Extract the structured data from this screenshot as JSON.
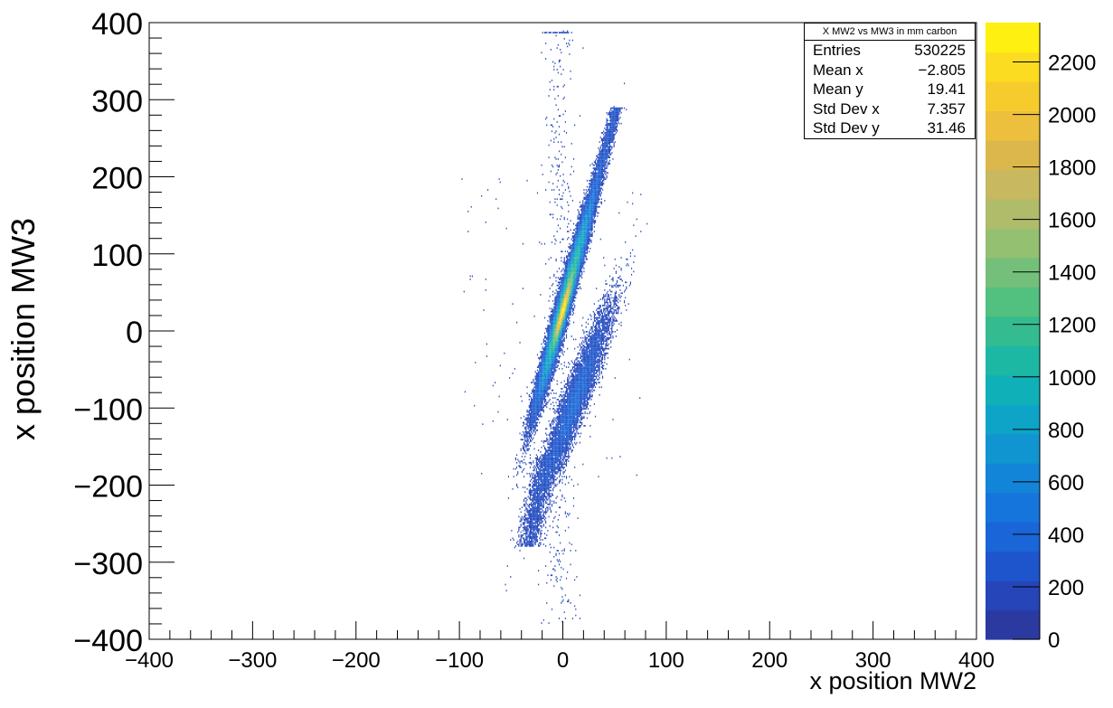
{
  "chart_data": {
    "type": "heatmap",
    "title": "",
    "xlabel": "x position MW2",
    "ylabel": "x position MW3",
    "xlim": [
      -400,
      400
    ],
    "ylim": [
      -400,
      400
    ],
    "x_ticks": [
      "−400",
      "−300",
      "−200",
      "−100",
      "0",
      "100",
      "200",
      "300",
      "400"
    ],
    "y_ticks": [
      "−400",
      "−300",
      "−200",
      "−100",
      "0",
      "100",
      "200",
      "300",
      "400"
    ],
    "colorbar": {
      "range": [
        0,
        2350
      ],
      "ticks": [
        "0",
        "200",
        "400",
        "600",
        "800",
        "1000",
        "1200",
        "1400",
        "1600",
        "1800",
        "2000",
        "2200"
      ],
      "palette": [
        "#2a3aa0",
        "#2545b8",
        "#1e55cc",
        "#1a65d8",
        "#1675dc",
        "#1385d8",
        "#1195d0",
        "#0ea4c8",
        "#10b0b8",
        "#1cb8a4",
        "#34bc90",
        "#52c07e",
        "#74c07a",
        "#94c072",
        "#b0bc6a",
        "#c8b860",
        "#dcb84c",
        "#ecc03c",
        "#f6cc2c",
        "#fcdc20",
        "#fef010"
      ]
    },
    "structure": {
      "main_band": "dense diagonal band from about (-40,-130) to (60,290), peak near (0,20) with ~2300 counts",
      "secondary_band": "sparser parallel band from about (-40,-230) to (20,40)",
      "outliers": "sparse points around x=0 from y=-380 to y=390"
    },
    "stats": {
      "title": "X MW2 vs MW3 in mm carbon",
      "rows": [
        {
          "label": "Entries",
          "value": "530225"
        },
        {
          "label": "Mean x",
          "value": "−2.805"
        },
        {
          "label": "Mean y",
          "value": "19.41"
        },
        {
          "label": "Std Dev x",
          "value": "7.357"
        },
        {
          "label": "Std Dev y",
          "value": "31.46"
        }
      ]
    }
  }
}
